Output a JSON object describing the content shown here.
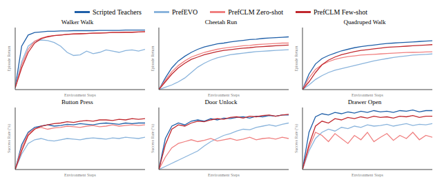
{
  "chart_data": [
    {
      "type": "line",
      "title": "Walker Walk",
      "xlabel": "Environment Steps",
      "ylabel": "Episode Return",
      "legend": "top",
      "tick_labels": false,
      "x": [
        0,
        50000,
        100000,
        150000,
        200000,
        250000,
        300000,
        350000,
        400000,
        450000,
        500000,
        550000,
        600000,
        650000,
        700000,
        750000,
        800000,
        850000,
        900000,
        950000,
        1000000
      ],
      "xlim": [
        0,
        1000000
      ],
      "ylim": [
        0,
        1000
      ],
      "series": [
        {
          "name": "Scripted Teachers",
          "color": "#1f5fa8",
          "values": [
            30,
            700,
            880,
            920,
            930,
            940,
            940,
            945,
            945,
            950,
            950,
            950,
            950,
            955,
            955,
            955,
            955,
            960,
            960,
            960,
            960
          ]
        },
        {
          "name": "PrefEVO",
          "color": "#8ab4dc",
          "values": [
            30,
            450,
            700,
            780,
            800,
            790,
            760,
            700,
            600,
            550,
            560,
            620,
            580,
            600,
            640,
            620,
            600,
            630,
            640,
            620,
            650
          ]
        },
        {
          "name": "PrefCLM Zero-shot",
          "color": "#f08080",
          "values": [
            30,
            400,
            650,
            780,
            830,
            860,
            870,
            880,
            890,
            900,
            900,
            905,
            910,
            915,
            915,
            920,
            920,
            925,
            925,
            930,
            930
          ]
        },
        {
          "name": "PrefCLM Few-shot",
          "color": "#c0282e",
          "values": [
            30,
            350,
            600,
            750,
            820,
            850,
            870,
            880,
            890,
            895,
            900,
            905,
            910,
            910,
            915,
            920,
            920,
            925,
            925,
            930,
            935
          ]
        }
      ]
    },
    {
      "type": "line",
      "title": "Cheetah Run",
      "xlabel": "Environment Steps",
      "ylabel": "Episode Return",
      "tick_labels": false,
      "x": [
        0,
        50000,
        100000,
        150000,
        200000,
        250000,
        300000,
        350000,
        400000,
        450000,
        500000,
        550000,
        600000,
        650000,
        700000,
        750000,
        800000,
        850000,
        900000,
        950000,
        1000000
      ],
      "xlim": [
        0,
        1000000
      ],
      "ylim": [
        0,
        800
      ],
      "series": [
        {
          "name": "Scripted Teachers",
          "color": "#1f5fa8",
          "values": [
            0,
            150,
            280,
            370,
            430,
            480,
            520,
            550,
            570,
            590,
            600,
            615,
            625,
            635,
            645,
            650,
            660,
            665,
            670,
            675,
            680
          ]
        },
        {
          "name": "PrefEVO",
          "color": "#8ab4dc",
          "values": [
            0,
            30,
            60,
            100,
            150,
            220,
            290,
            340,
            380,
            410,
            430,
            450,
            460,
            470,
            480,
            490,
            495,
            500,
            505,
            510,
            515
          ]
        },
        {
          "name": "PrefCLM Zero-shot",
          "color": "#f08080",
          "values": [
            0,
            120,
            230,
            310,
            370,
            420,
            450,
            480,
            500,
            520,
            535,
            545,
            555,
            565,
            570,
            580,
            585,
            590,
            595,
            600,
            600
          ]
        },
        {
          "name": "PrefCLM Few-shot",
          "color": "#c0282e",
          "values": [
            0,
            100,
            200,
            280,
            340,
            390,
            420,
            450,
            470,
            490,
            505,
            515,
            525,
            535,
            540,
            550,
            555,
            560,
            565,
            570,
            575
          ]
        }
      ]
    },
    {
      "type": "line",
      "title": "Quadruped Walk",
      "xlabel": "Environment Steps",
      "ylabel": "Episode Return",
      "tick_labels": false,
      "x": [
        0,
        50000,
        100000,
        150000,
        200000,
        250000,
        300000,
        350000,
        400000,
        450000,
        500000,
        550000,
        600000,
        650000,
        700000,
        750000,
        800000,
        850000,
        900000,
        950000,
        1000000
      ],
      "xlim": [
        0,
        1000000
      ],
      "ylim": [
        0,
        800
      ],
      "series": [
        {
          "name": "Scripted Teachers",
          "color": "#1f5fa8",
          "values": [
            0,
            200,
            330,
            400,
            440,
            470,
            500,
            520,
            540,
            555,
            565,
            575,
            585,
            595,
            600,
            605,
            610,
            615,
            620,
            625,
            630
          ]
        },
        {
          "name": "PrefEVO",
          "color": "#8ab4dc",
          "values": [
            0,
            60,
            130,
            180,
            220,
            250,
            270,
            290,
            310,
            330,
            350,
            370,
            385,
            400,
            415,
            425,
            435,
            445,
            450,
            455,
            460
          ]
        },
        {
          "name": "PrefCLM Zero-shot",
          "color": "#f08080",
          "values": [
            0,
            150,
            260,
            320,
            360,
            390,
            410,
            425,
            435,
            445,
            450,
            455,
            460,
            465,
            470,
            475,
            478,
            480,
            482,
            485,
            488
          ]
        },
        {
          "name": "PrefCLM Few-shot",
          "color": "#c0282e",
          "values": [
            0,
            100,
            220,
            320,
            380,
            420,
            450,
            470,
            490,
            505,
            515,
            525,
            535,
            545,
            550,
            555,
            560,
            565,
            570,
            575,
            580
          ]
        }
      ]
    },
    {
      "type": "line",
      "title": "Button Press",
      "xlabel": "Environment Steps",
      "ylabel": "Success Rate (%)",
      "tick_labels": false,
      "x": [
        0,
        50000,
        100000,
        150000,
        200000,
        250000,
        300000,
        350000,
        400000,
        450000,
        500000,
        550000,
        600000,
        650000,
        700000,
        750000,
        800000,
        850000,
        900000,
        950000,
        1000000
      ],
      "xlim": [
        0,
        1000000
      ],
      "ylim": [
        0,
        100
      ],
      "series": [
        {
          "name": "Scripted Teachers",
          "color": "#1f5fa8",
          "values": [
            0,
            40,
            60,
            68,
            70,
            72,
            70,
            71,
            73,
            72,
            74,
            73,
            72,
            74,
            75,
            74,
            73,
            75,
            74,
            75,
            75
          ]
        },
        {
          "name": "PrefEVO",
          "color": "#8ab4dc",
          "values": [
            0,
            25,
            42,
            48,
            50,
            47,
            46,
            48,
            50,
            49,
            48,
            50,
            51,
            50,
            49,
            51,
            50,
            52,
            51,
            50,
            52
          ]
        },
        {
          "name": "PrefCLM Zero-shot",
          "color": "#f08080",
          "values": [
            0,
            35,
            58,
            66,
            68,
            65,
            67,
            68,
            70,
            69,
            68,
            70,
            71,
            69,
            70,
            72,
            70,
            71,
            72,
            71,
            72
          ]
        },
        {
          "name": "PrefCLM Few-shot",
          "color": "#c0282e",
          "values": [
            0,
            30,
            55,
            65,
            70,
            72,
            74,
            75,
            77,
            76,
            78,
            79,
            78,
            80,
            80,
            79,
            81,
            80,
            82,
            81,
            82
          ]
        }
      ]
    },
    {
      "type": "line",
      "title": "Door Unlock",
      "xlabel": "Environment Steps",
      "ylabel": "Success Rate (%)",
      "tick_labels": false,
      "x": [
        0,
        50000,
        100000,
        150000,
        200000,
        250000,
        300000,
        350000,
        400000,
        450000,
        500000,
        550000,
        600000,
        650000,
        700000,
        750000,
        800000,
        850000,
        900000,
        950000,
        1000000
      ],
      "xlim": [
        0,
        1000000
      ],
      "ylim": [
        0,
        100
      ],
      "series": [
        {
          "name": "Scripted Teachers",
          "color": "#1f5fa8",
          "values": [
            0,
            50,
            70,
            75,
            72,
            78,
            80,
            78,
            82,
            80,
            83,
            82,
            84,
            85,
            83,
            86,
            85,
            87,
            86,
            88,
            88
          ]
        },
        {
          "name": "PrefEVO",
          "color": "#8ab4dc",
          "values": [
            0,
            5,
            10,
            15,
            20,
            25,
            30,
            38,
            45,
            50,
            55,
            58,
            62,
            65,
            64,
            68,
            70,
            72,
            70,
            73,
            75
          ]
        },
        {
          "name": "PrefCLM Zero-shot",
          "color": "#f08080",
          "values": [
            0,
            20,
            35,
            42,
            45,
            48,
            45,
            47,
            50,
            46,
            48,
            50,
            47,
            49,
            52,
            48,
            50,
            51,
            49,
            52,
            50
          ]
        },
        {
          "name": "PrefCLM Few-shot",
          "color": "#c0282e",
          "values": [
            0,
            40,
            65,
            72,
            70,
            75,
            78,
            77,
            80,
            82,
            81,
            84,
            85,
            83,
            86,
            85,
            87,
            88,
            86,
            88,
            89
          ]
        }
      ]
    },
    {
      "type": "line",
      "title": "Drawer Open",
      "xlabel": "Environment Steps",
      "ylabel": "Success Rate (%)",
      "tick_labels": false,
      "x": [
        0,
        50000,
        100000,
        150000,
        200000,
        250000,
        300000,
        350000,
        400000,
        450000,
        500000,
        550000,
        600000,
        650000,
        700000,
        750000,
        800000,
        850000,
        900000,
        950000,
        1000000
      ],
      "xlim": [
        0,
        1000000
      ],
      "ylim": [
        0,
        100
      ],
      "series": [
        {
          "name": "Scripted Teachers",
          "color": "#1f5fa8",
          "values": [
            0,
            60,
            85,
            90,
            88,
            92,
            90,
            93,
            91,
            94,
            92,
            95,
            93,
            94,
            92,
            95,
            94,
            96,
            93,
            95,
            95
          ]
        },
        {
          "name": "PrefEVO",
          "color": "#8ab4dc",
          "values": [
            0,
            30,
            50,
            60,
            65,
            62,
            68,
            66,
            70,
            68,
            72,
            70,
            71,
            73,
            70,
            72,
            74,
            71,
            73,
            72,
            74
          ]
        },
        {
          "name": "PrefCLM Zero-shot",
          "color": "#f08080",
          "values": [
            0,
            35,
            60,
            55,
            45,
            58,
            50,
            42,
            55,
            48,
            60,
            45,
            52,
            58,
            47,
            55,
            50,
            60,
            48,
            55,
            52
          ]
        },
        {
          "name": "PrefCLM Few-shot",
          "color": "#c0282e",
          "values": [
            0,
            40,
            70,
            78,
            75,
            82,
            80,
            84,
            82,
            85,
            83,
            86,
            84,
            85,
            83,
            86,
            85,
            87,
            84,
            86,
            86
          ]
        }
      ]
    }
  ]
}
